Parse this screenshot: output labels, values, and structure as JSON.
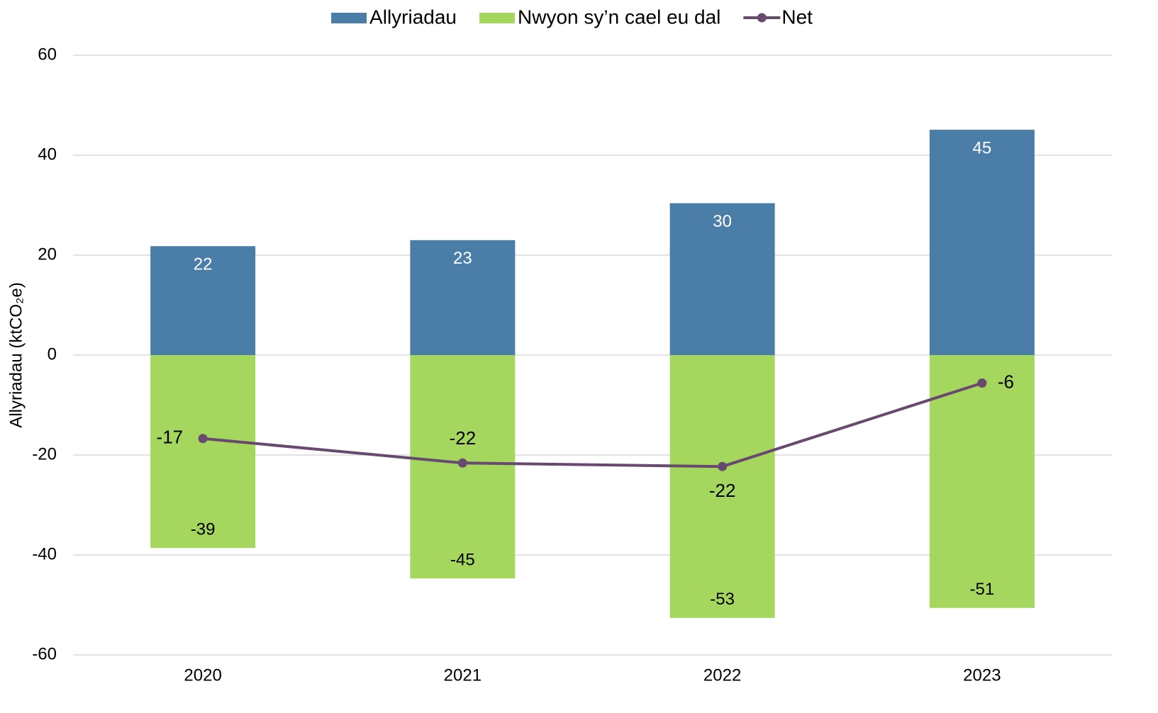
{
  "chart_data": {
    "type": "bar_line",
    "y_label": "Allyriadau (ktCO₂e)",
    "categories": [
      "2020",
      "2021",
      "2022",
      "2023"
    ],
    "series": [
      {
        "name": "Allyriadau",
        "type": "bar",
        "color": "#4a7ea8",
        "values": [
          21.8,
          23.0,
          30.4,
          45.1
        ],
        "value_labels": [
          "22",
          "23",
          "30",
          "45"
        ]
      },
      {
        "name": "Nwyon sy’n cael eu dal",
        "type": "bar",
        "color": "#a5d65e",
        "values": [
          -38.6,
          -44.7,
          -52.6,
          -50.6
        ],
        "value_labels": [
          "-39",
          "-45",
          "-53",
          "-51"
        ]
      },
      {
        "name": "Net",
        "type": "line",
        "color": "#68496f",
        "values": [
          -16.7,
          -21.6,
          -22.3,
          -5.6
        ],
        "value_labels": [
          "-17",
          "-22",
          "-22",
          "-6"
        ]
      }
    ],
    "ylim": [
      -60,
      60
    ],
    "yticks": [
      -60,
      -40,
      -20,
      0,
      20,
      40,
      60
    ],
    "grid": true,
    "legend": "top"
  }
}
